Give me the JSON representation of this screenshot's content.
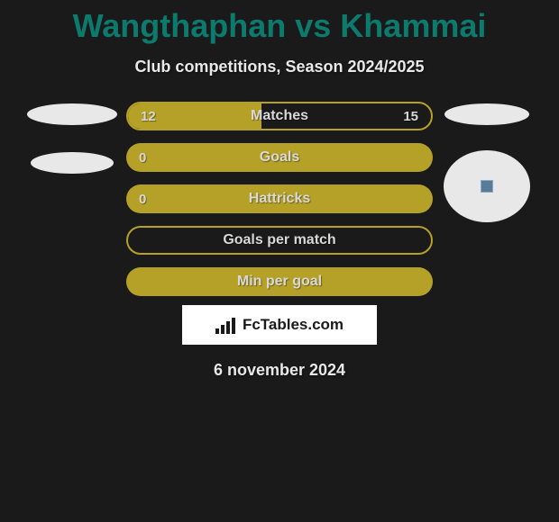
{
  "title": "Wangthaphan vs Khammai",
  "subtitle": "Club competitions, Season 2024/2025",
  "brand_text": "FcTables.com",
  "date": "6 november 2024",
  "colors": {
    "background": "#1a1a1a",
    "title_color": "#0d7a6e",
    "text_color": "#e8e8e8",
    "bar_color": "#b5a127",
    "bar_text": "#d8d8d8",
    "logo_bg": "#ffffff",
    "logo_text": "#1a1a1a",
    "ellipse_fill": "#e8e8e8"
  },
  "bars": {
    "matches": {
      "label": "Matches",
      "left_value": "12",
      "right_value": "15",
      "left_fill_percent": 44,
      "style": "outlined"
    },
    "goals": {
      "label": "Goals",
      "left_value": "0",
      "right_value": "",
      "left_fill_percent": 0,
      "style": "filled"
    },
    "hattricks": {
      "label": "Hattricks",
      "left_value": "0",
      "right_value": "",
      "left_fill_percent": 0,
      "style": "filled"
    },
    "goals_per_match": {
      "label": "Goals per match",
      "left_value": "",
      "right_value": "",
      "left_fill_percent": 0,
      "style": "outlined"
    },
    "min_per_goal": {
      "label": "Min per goal",
      "left_value": "",
      "right_value": "",
      "left_fill_percent": 0,
      "style": "filled"
    }
  },
  "placeholders": {
    "left1": {
      "w": 100,
      "h": 24
    },
    "left2": {
      "w": 92,
      "h": 24
    },
    "right1": {
      "w": 94,
      "h": 24
    },
    "right2": {
      "w": 96,
      "h": 80
    }
  }
}
